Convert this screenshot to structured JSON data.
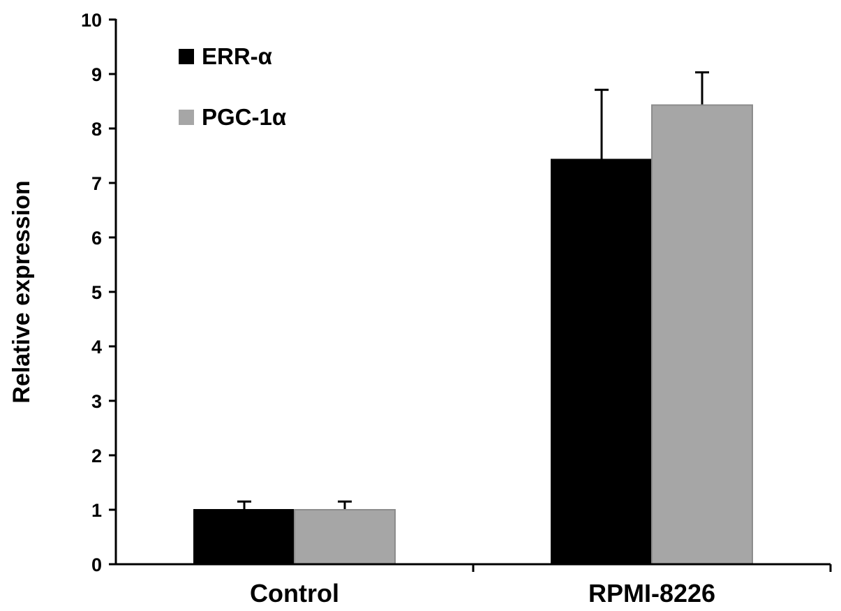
{
  "chart_data": {
    "type": "bar",
    "title": "",
    "xlabel": "",
    "ylabel": "Relative expression",
    "categories": [
      "Control",
      "RPMI-8226"
    ],
    "ylim": [
      0,
      10
    ],
    "yticks": [
      0,
      1,
      2,
      3,
      4,
      5,
      6,
      7,
      8,
      9,
      10
    ],
    "grid": false,
    "legend_position": "top-left",
    "series": [
      {
        "name": "ERR-α",
        "color": "#000000",
        "values": [
          1.0,
          7.43
        ],
        "errors": [
          0.15,
          1.28
        ]
      },
      {
        "name": "PGC-1α",
        "color": "#a6a6a6",
        "values": [
          1.0,
          8.43
        ],
        "errors": [
          0.15,
          0.6
        ]
      }
    ]
  }
}
